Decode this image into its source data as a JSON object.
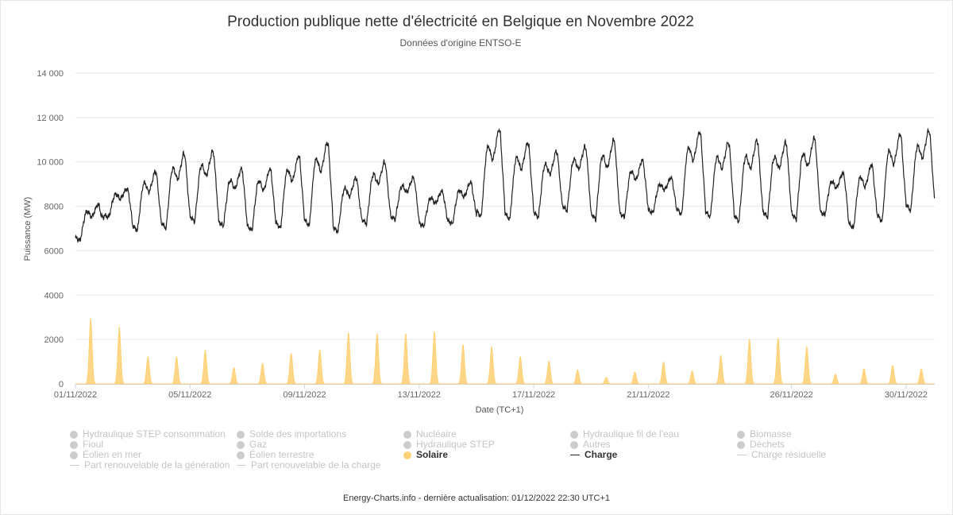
{
  "title": "Production publique nette d'électricité en Belgique en Novembre 2022",
  "subtitle": "Données d'origine ENTSO-E",
  "footer": "Energy-Charts.info - dernière actualisation: 01/12/2022 22:30 UTC+1",
  "chart_data": {
    "type": "area",
    "xlabel": "Date (TC+1)",
    "ylabel": "Puissance (MW)",
    "ylim": [
      0,
      14000
    ],
    "yticks": [
      0,
      2000,
      4000,
      6000,
      8000,
      10000,
      12000,
      14000
    ],
    "ytick_labels": [
      "0",
      "2000",
      "4000",
      "6000",
      "8000",
      "10 000",
      "12 000",
      "14 000"
    ],
    "xlim": [
      "01/11/2022 00:00",
      "01/12/2022 00:00"
    ],
    "xtick_labels": [
      "01/11/2022",
      "05/11/2022",
      "09/11/2022",
      "13/11/2022",
      "17/11/2022",
      "21/11/2022",
      "26/11/2022",
      "30/11/2022"
    ],
    "xtick_days": [
      0,
      4,
      8,
      12,
      16,
      20,
      25,
      29
    ],
    "grid": true,
    "legend_position": "bottom",
    "colors": {
      "solar": "#ffd27a",
      "load": "#222222",
      "inactive": "#cccccc"
    },
    "series": [
      {
        "name": "Solaire",
        "description": "daily peak (MW) around midday, one value per day",
        "daily_peak": [
          3000,
          2600,
          1250,
          1250,
          1550,
          750,
          950,
          1400,
          1550,
          2350,
          2300,
          2300,
          2400,
          1800,
          1700,
          1250,
          1050,
          650,
          300,
          550,
          1000,
          600,
          1300,
          2050,
          2100,
          1700,
          450,
          700,
          850,
          700
        ]
      },
      {
        "name": "Charge",
        "description": "daily minimum (night) and daily maximum (evening peak) of load in MW",
        "daily_min": [
          6450,
          7500,
          6900,
          7000,
          7300,
          7100,
          6900,
          7000,
          7100,
          6850,
          7200,
          7400,
          7100,
          7200,
          7500,
          7400,
          7500,
          7800,
          7400,
          7500,
          7700,
          7600,
          7500,
          7300,
          7500,
          7400,
          7600,
          7000,
          7300,
          7800
        ],
        "daily_max": [
          8100,
          8800,
          9600,
          10400,
          10500,
          9700,
          9700,
          10300,
          10900,
          9300,
          10000,
          9300,
          8700,
          9100,
          11500,
          10900,
          10500,
          10700,
          11000,
          10100,
          9300,
          11400,
          10900,
          11000,
          10900,
          11100,
          9500,
          9900,
          11300,
          11450
        ]
      }
    ],
    "legend": [
      {
        "label": "Hydraulique STEP consommation",
        "symbol": "dot",
        "active": false
      },
      {
        "label": "Solde des importations",
        "symbol": "dot",
        "active": false
      },
      {
        "label": "Nucléaire",
        "symbol": "dot",
        "active": false
      },
      {
        "label": "Hydraulique fil de l'eau",
        "symbol": "dot",
        "active": false
      },
      {
        "label": "Biomasse",
        "symbol": "dot",
        "active": false
      },
      {
        "label": "Fioul",
        "symbol": "dot",
        "active": false
      },
      {
        "label": "Gaz",
        "symbol": "dot",
        "active": false
      },
      {
        "label": "Hydraulique STEP",
        "symbol": "dot",
        "active": false
      },
      {
        "label": "Autres",
        "symbol": "dot",
        "active": false
      },
      {
        "label": "Déchets",
        "symbol": "dot",
        "active": false
      },
      {
        "label": "Éolien en mer",
        "symbol": "dot",
        "active": false
      },
      {
        "label": "Éolien terrestre",
        "symbol": "dot",
        "active": false
      },
      {
        "label": "Solaire",
        "symbol": "dot",
        "active": true,
        "color": "#ffd27a"
      },
      {
        "label": "Charge",
        "symbol": "line",
        "active": true,
        "color": "#222222"
      },
      {
        "label": "Charge résiduelle",
        "symbol": "line",
        "active": false
      },
      {
        "label": "Part renouvelable de la génération",
        "symbol": "line",
        "active": false
      },
      {
        "label": "Part renouvelable de la charge",
        "symbol": "line",
        "active": false
      }
    ]
  }
}
